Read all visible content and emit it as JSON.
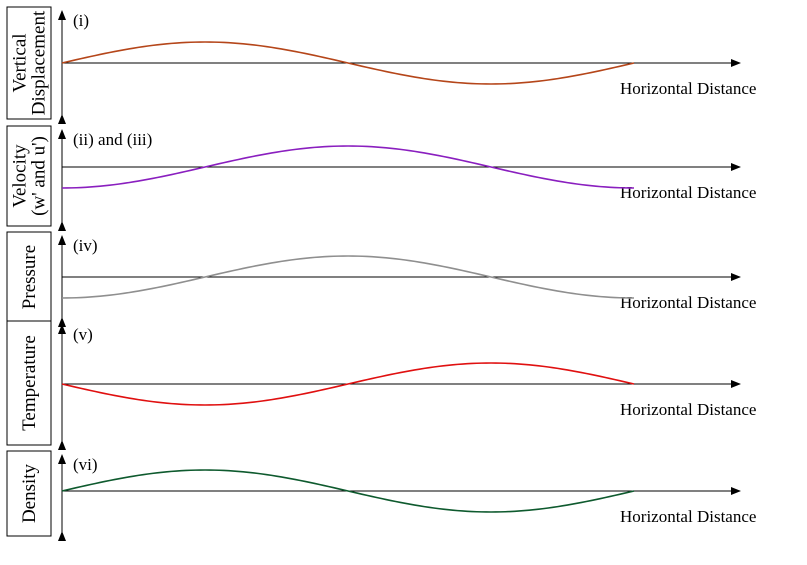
{
  "diagram": {
    "x_axis_label": "Horizontal Distance",
    "wave": {
      "cycles": 1,
      "samples": 120
    },
    "panels": [
      {
        "id": "i",
        "tag": "(i)",
        "ylabel": [
          "Vertical",
          "Displacement"
        ],
        "color": "#b5461a",
        "phase_deg": 0,
        "amplitude": 1
      },
      {
        "id": "ii",
        "tag": "(ii) and (iii)",
        "ylabel": [
          "Velocity",
          "(w' and u')"
        ],
        "color": "#8a1fbf",
        "phase_deg": -90,
        "amplitude": 1
      },
      {
        "id": "iv",
        "tag": "(iv)",
        "ylabel": [
          "Pressure"
        ],
        "color": "#8f8f8f",
        "phase_deg": -90,
        "amplitude": 1
      },
      {
        "id": "v",
        "tag": "(v)",
        "ylabel": [
          "Temperature"
        ],
        "color": "#e01010",
        "phase_deg": 180,
        "amplitude": 1
      },
      {
        "id": "vi",
        "tag": "(vi)",
        "ylabel": [
          "Density"
        ],
        "color": "#0e5a2e",
        "phase_deg": 0,
        "amplitude": 1
      }
    ]
  }
}
